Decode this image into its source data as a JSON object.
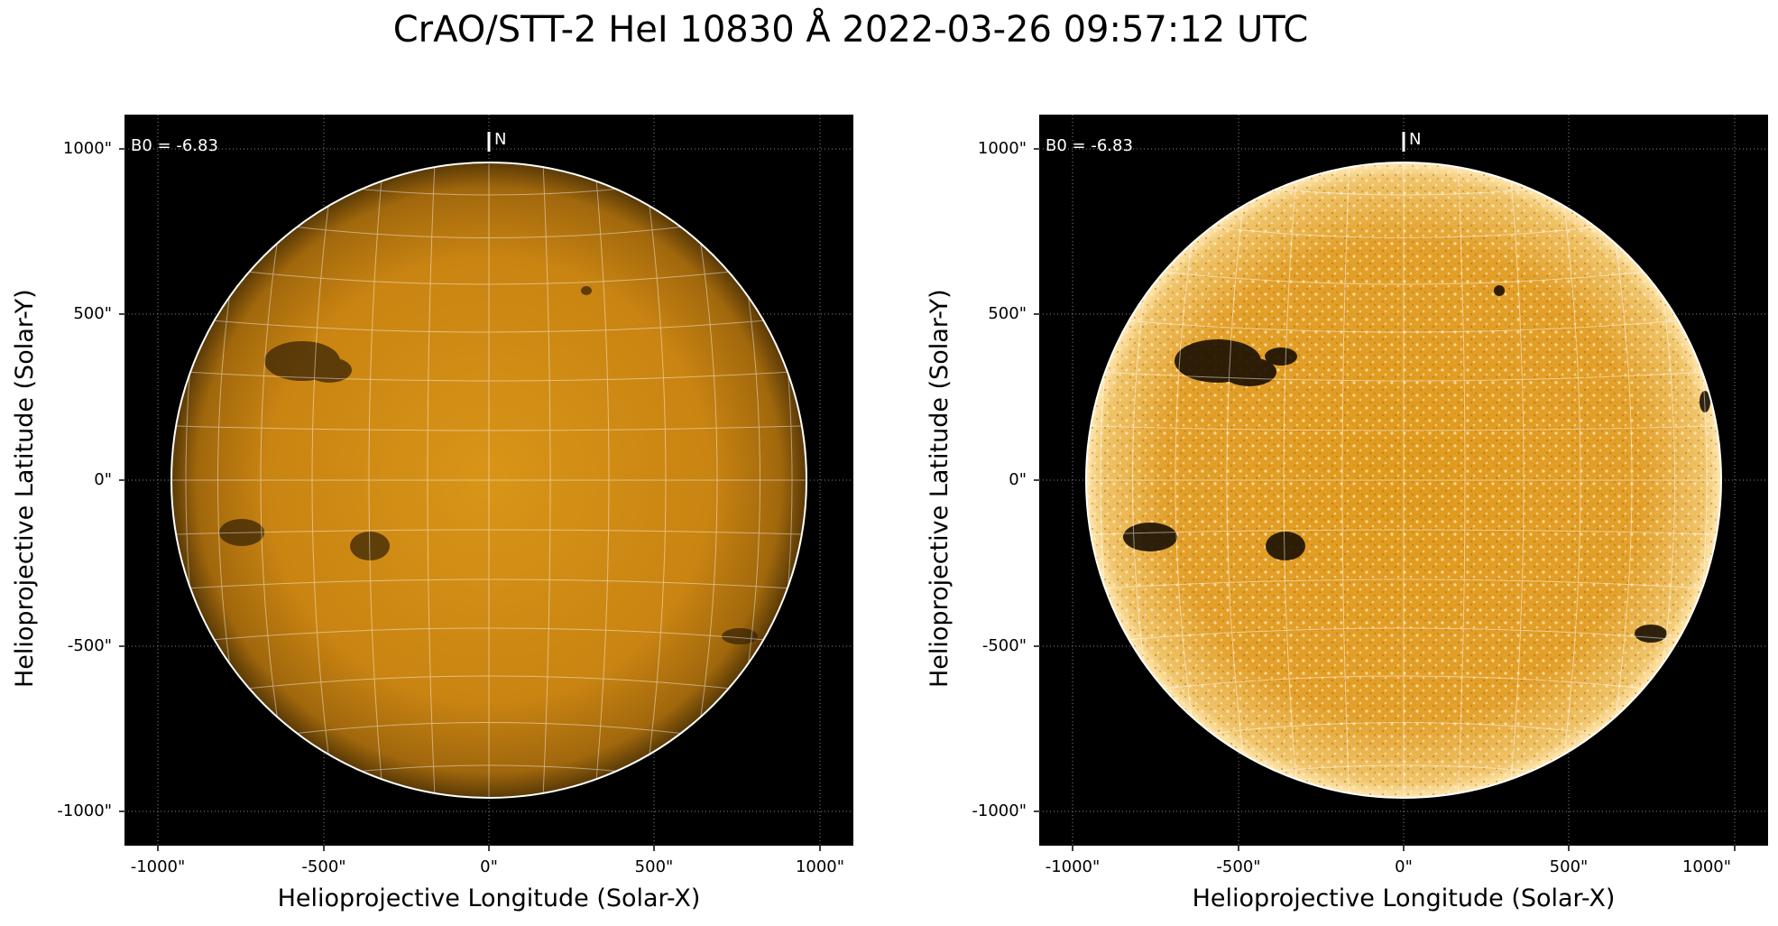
{
  "figure": {
    "title": "CrAO/STT-2 HeI 10830 Å 2022-03-26 09:57:12 UTC"
  },
  "panels": [
    {
      "id": "left",
      "annotation": "B0 = -6.83",
      "north_label": "N",
      "xlabel": "Helioprojective Longitude (Solar-X)",
      "ylabel": "Helioprojective Latitude (Solar-Y)",
      "xticks": [
        "-1000\"",
        "-500\"",
        "0\"",
        "500\"",
        "1000\""
      ],
      "yticks": [
        "1000\"",
        "500\"",
        "0\"",
        "-500\"",
        "-1000\""
      ],
      "image_style": "lower-contrast"
    },
    {
      "id": "right",
      "annotation": "B0 = -6.83",
      "north_label": "N",
      "xlabel": "Helioprojective Longitude (Solar-X)",
      "ylabel": "Helioprojective Latitude (Solar-Y)",
      "xticks": [
        "-1000\"",
        "-500\"",
        "0\"",
        "500\"",
        "1000\""
      ],
      "yticks": [
        "1000\"",
        "500\"",
        "0\"",
        "-500\"",
        "-1000\""
      ],
      "image_style": "higher-contrast"
    }
  ],
  "colors": {
    "disk": "#d08a14",
    "disk_bright": "#f2b545",
    "background": "#000000",
    "grid": "#ffffff"
  }
}
